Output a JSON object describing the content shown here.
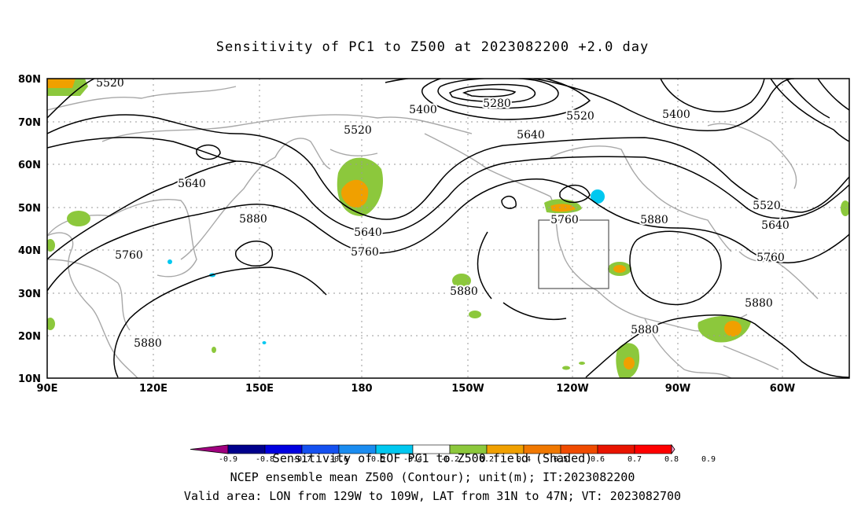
{
  "title": "Sensitivity of PC1 to Z500 at 2023082200 +2.0 day",
  "lat_labels": [
    "80N",
    "70N",
    "60N",
    "50N",
    "40N",
    "30N",
    "20N",
    "10N"
  ],
  "lon_labels": [
    "90E",
    "120E",
    "150E",
    "180",
    "150W",
    "120W",
    "90W",
    "60W"
  ],
  "contour_labels": [
    "5520",
    "5280",
    "5400",
    "5520",
    "5520",
    "5400",
    "5640",
    "5640",
    "5520",
    "5880",
    "5640",
    "5640",
    "5760",
    "5760",
    "5880",
    "5760",
    "5880",
    "5760",
    "5880",
    "5880",
    "5880"
  ],
  "colorbar": {
    "ticks": [
      "-0.9",
      "-0.8",
      "-0.7",
      "-0.6",
      "-0.5",
      "-0.4",
      "-0.2",
      "0.2",
      "0.4",
      "0.5",
      "0.6",
      "0.7",
      "0.8",
      "0.9"
    ],
    "colors": [
      "#a0007f",
      "#00008c",
      "#0000e0",
      "#1450f0",
      "#1a8cf0",
      "#00c8f0",
      "#ffffff",
      "#8cc83c",
      "#f0a000",
      "#f07800",
      "#f04b00",
      "#e81400",
      "#ff0000",
      "#ff96c8"
    ]
  },
  "footer": {
    "line1": "Sensitivity of EOF PC1 to Z500 field (Shaded)",
    "line2": "NCEP ensemble mean Z500 (Contour); unit(m); IT:2023082200",
    "line3": "Valid area: LON from 129W to 109W, LAT from 31N to 47N; VT: 2023082700"
  }
}
